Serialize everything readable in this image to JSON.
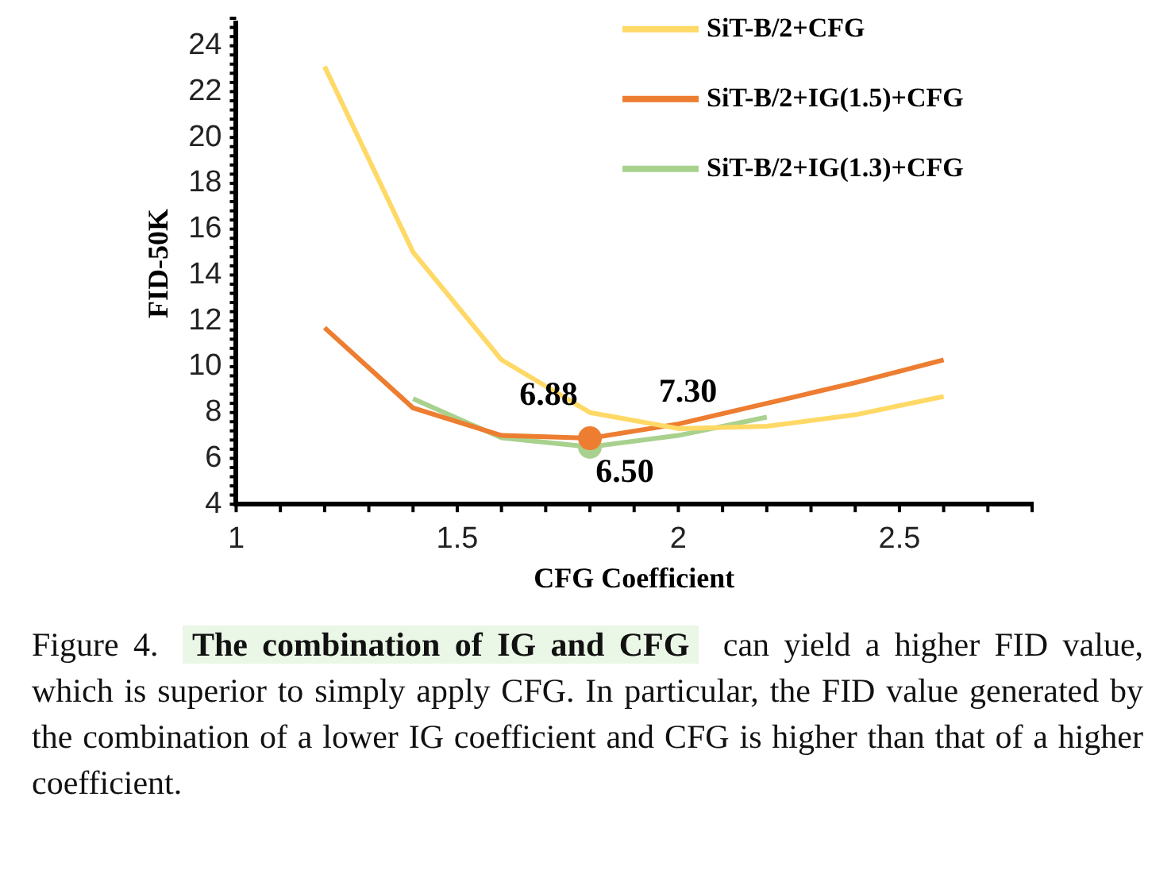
{
  "chart_data": {
    "type": "line",
    "xlabel": "CFG Coefficient",
    "ylabel": "FID-50K",
    "x": [
      1.2,
      1.4,
      1.6,
      1.8,
      2.0,
      2.2,
      2.4,
      2.6
    ],
    "series": [
      {
        "name": "SiT-B/2+CFG",
        "color": "#ffd966",
        "values": [
          23.1,
          15.0,
          10.3,
          8.0,
          7.3,
          7.4,
          7.9,
          8.7
        ]
      },
      {
        "name": "SiT-B/2+IG(1.5)+CFG",
        "color": "#ed7d31",
        "values": [
          11.7,
          8.2,
          7.0,
          6.88,
          7.5,
          8.4,
          9.3,
          10.3
        ],
        "value_labels": [
          null,
          null,
          null,
          "6.88",
          null,
          null,
          null,
          null
        ]
      },
      {
        "name": "SiT-B/2+IG(1.3)+CFG",
        "color": "#a9d18e",
        "x": [
          1.4,
          1.6,
          1.8,
          2.0,
          2.2
        ],
        "values": [
          8.6,
          6.9,
          6.5,
          7.0,
          7.8
        ],
        "value_labels": [
          null,
          null,
          "6.50",
          null,
          null
        ]
      }
    ],
    "xlim": [
      1,
      2.8
    ],
    "xticks": [
      1,
      1.5,
      2,
      2.5
    ],
    "ylim": [
      4,
      25
    ],
    "yticks": [
      4,
      6,
      8,
      10,
      12,
      14,
      16,
      18,
      20,
      22,
      24
    ],
    "grid": false,
    "legend": "top right",
    "annotations": [
      {
        "text": "7.30",
        "x": 2.0,
        "y": 7.3
      },
      "Figure 4.",
      "The combination of IG and CFG",
      "can yield a higher FID value, which is superior to simply apply CFG. In particular, the FID value generated by the combination of a lower IG coefficient and CFG is higher than that of a higher coefficient."
    ]
  }
}
